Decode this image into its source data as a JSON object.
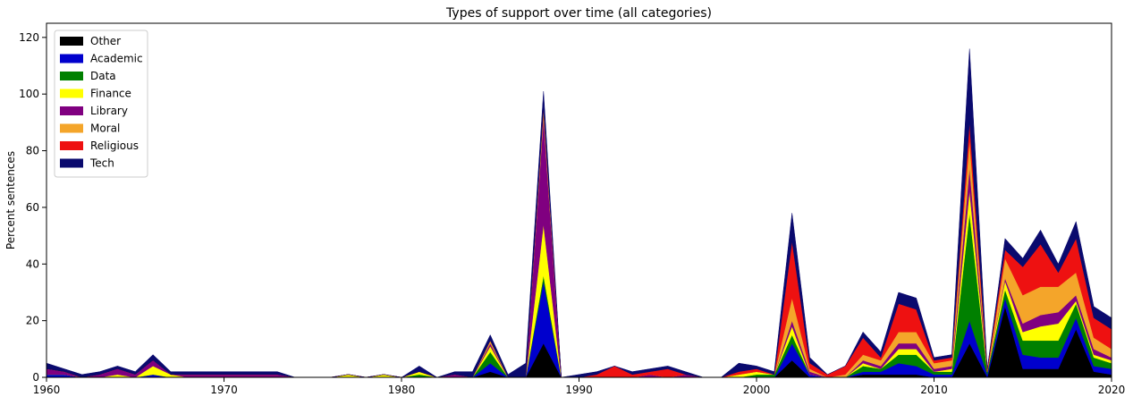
{
  "chart_data": {
    "type": "area",
    "title": "Types of support over time (all categories)",
    "xlabel": "",
    "ylabel": "Percent sentences",
    "xlim": [
      1960,
      2020
    ],
    "ylim": [
      0,
      125
    ],
    "xticks": [
      1960,
      1970,
      1980,
      1990,
      2000,
      2010,
      2020
    ],
    "yticks": [
      0,
      20,
      40,
      60,
      80,
      100,
      120
    ],
    "grid": false,
    "legend_position": "upper left",
    "x": [
      1960,
      1961,
      1962,
      1963,
      1964,
      1965,
      1966,
      1967,
      1968,
      1969,
      1970,
      1971,
      1972,
      1973,
      1974,
      1975,
      1976,
      1977,
      1978,
      1979,
      1980,
      1981,
      1982,
      1983,
      1984,
      1985,
      1986,
      1987,
      1988,
      1989,
      1990,
      1991,
      1992,
      1993,
      1994,
      1995,
      1996,
      1997,
      1998,
      1999,
      2000,
      2001,
      2002,
      2003,
      2004,
      2005,
      2006,
      2007,
      2008,
      2009,
      2010,
      2011,
      2012,
      2013,
      2014,
      2015,
      2016,
      2017,
      2018,
      2019,
      2020
    ],
    "series": [
      {
        "name": "Other",
        "color": "#000000",
        "values": [
          0,
          0,
          0,
          0,
          0,
          0,
          0,
          0,
          0,
          0,
          0,
          0,
          0,
          0,
          0,
          0,
          0,
          0,
          0,
          0,
          0,
          0,
          0,
          0,
          0,
          2,
          0,
          0,
          12,
          0,
          0,
          0,
          0,
          0,
          0,
          0,
          0,
          0,
          0,
          0,
          0,
          0,
          6,
          0,
          0,
          0,
          1,
          1,
          1,
          1,
          0,
          0,
          12,
          0,
          25,
          3,
          3,
          3,
          17,
          2,
          1
        ]
      },
      {
        "name": "Academic",
        "color": "#0000cd",
        "values": [
          1,
          1,
          0,
          0,
          0,
          0,
          1,
          0,
          0,
          0,
          0,
          0,
          0,
          0,
          0,
          0,
          0,
          0,
          0,
          0,
          0,
          0,
          0,
          0,
          0,
          3,
          0,
          0,
          22,
          0,
          0,
          0,
          0,
          0,
          0,
          0,
          0,
          0,
          0,
          0,
          0,
          0,
          6,
          1,
          0,
          0,
          1,
          1,
          4,
          3,
          1,
          1,
          8,
          1,
          3,
          5,
          4,
          4,
          4,
          2,
          2
        ]
      },
      {
        "name": "Data",
        "color": "#008000",
        "values": [
          0,
          0,
          0,
          0,
          0,
          0,
          0,
          0,
          0,
          0,
          0,
          0,
          0,
          0,
          0,
          0,
          0,
          0,
          0,
          0,
          0,
          1,
          0,
          0,
          0,
          4,
          0,
          0,
          2,
          0,
          0,
          0,
          0,
          0,
          0,
          0,
          0,
          0,
          0,
          0,
          1,
          1,
          3,
          0,
          0,
          0,
          2,
          1,
          3,
          4,
          1,
          1,
          38,
          1,
          3,
          5,
          6,
          6,
          5,
          3,
          2
        ]
      },
      {
        "name": "Finance",
        "color": "#ffff00",
        "values": [
          0,
          0,
          0,
          0,
          1,
          0,
          3,
          1,
          0,
          0,
          0,
          0,
          0,
          0,
          0,
          0,
          0,
          1,
          0,
          1,
          0,
          1,
          0,
          0,
          0,
          2,
          0,
          0,
          18,
          0,
          0,
          0,
          0,
          0,
          0,
          0,
          0,
          0,
          0,
          1,
          1,
          0,
          3,
          0,
          0,
          0,
          1,
          0,
          2,
          2,
          0,
          1,
          8,
          0,
          3,
          3,
          5,
          6,
          1,
          1,
          1
        ]
      },
      {
        "name": "Library",
        "color": "#800080",
        "values": [
          2,
          1,
          0,
          1,
          2,
          1,
          2,
          0,
          1,
          1,
          1,
          1,
          1,
          1,
          0,
          0,
          0,
          0,
          0,
          0,
          0,
          0,
          0,
          1,
          0,
          1,
          0,
          0,
          38,
          0,
          0,
          0,
          0,
          0,
          1,
          0,
          1,
          0,
          0,
          0,
          0,
          0,
          2,
          1,
          0,
          0,
          1,
          1,
          2,
          2,
          1,
          1,
          8,
          0,
          1,
          3,
          4,
          4,
          2,
          2,
          1
        ]
      },
      {
        "name": "Moral",
        "color": "#f4a52a",
        "values": [
          0,
          0,
          0,
          0,
          0,
          0,
          0,
          0,
          0,
          0,
          0,
          0,
          0,
          0,
          0,
          0,
          0,
          0,
          0,
          0,
          0,
          0,
          0,
          0,
          0,
          1,
          0,
          0,
          3,
          0,
          0,
          0,
          0,
          0,
          0,
          0,
          0,
          0,
          0,
          0,
          0,
          0,
          8,
          1,
          0,
          1,
          2,
          2,
          4,
          4,
          2,
          2,
          10,
          0,
          7,
          10,
          10,
          9,
          8,
          4,
          3
        ]
      },
      {
        "name": "Religious",
        "color": "#ee1111",
        "values": [
          0,
          0,
          0,
          0,
          0,
          0,
          0,
          0,
          0,
          0,
          0,
          0,
          0,
          0,
          0,
          0,
          0,
          0,
          0,
          0,
          0,
          0,
          0,
          0,
          0,
          0,
          0,
          0,
          0,
          0,
          0,
          1,
          4,
          1,
          1,
          3,
          0,
          0,
          0,
          1,
          1,
          0,
          20,
          2,
          1,
          3,
          6,
          1,
          10,
          8,
          1,
          1,
          6,
          1,
          3,
          10,
          15,
          5,
          12,
          7,
          7
        ]
      },
      {
        "name": "Tech",
        "color": "#0a0a6e",
        "values": [
          2,
          1,
          1,
          1,
          1,
          1,
          2,
          1,
          1,
          1,
          1,
          1,
          1,
          1,
          0,
          0,
          0,
          0,
          0,
          0,
          0,
          2,
          0,
          1,
          2,
          2,
          1,
          5,
          6,
          0,
          1,
          1,
          0,
          1,
          1,
          1,
          1,
          0,
          0,
          3,
          1,
          1,
          10,
          2,
          0,
          0,
          2,
          2,
          4,
          4,
          1,
          1,
          26,
          0,
          4,
          3,
          5,
          3,
          6,
          4,
          4
        ]
      }
    ]
  }
}
